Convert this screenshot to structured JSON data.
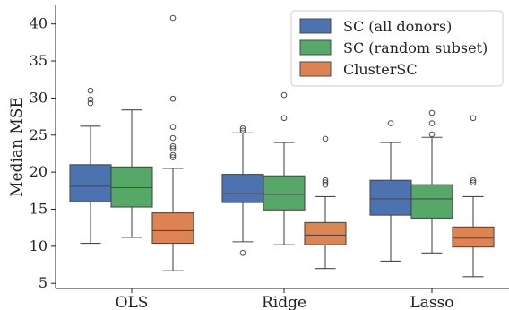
{
  "chart_data": {
    "type": "boxplot",
    "title": "",
    "xlabel": "",
    "ylabel": "Median MSE",
    "ylim": [
      4.3,
      42.5
    ],
    "yticks": [
      5,
      10,
      15,
      20,
      25,
      30,
      35,
      40
    ],
    "grid": false,
    "legend_position": "top-right",
    "categories": [
      "OLS",
      "Ridge",
      "Lasso"
    ],
    "series": [
      {
        "name": "SC (all donors)",
        "color": "#4c72b0",
        "boxes": [
          {
            "whislo": 10.4,
            "q1": 16.0,
            "med": 18.1,
            "q3": 21.0,
            "whishi": 26.2,
            "fliers": [
              29.3,
              29.8,
              31.0
            ]
          },
          {
            "whislo": 10.6,
            "q1": 15.9,
            "med": 17.1,
            "q3": 19.7,
            "whishi": 25.3,
            "fliers": [
              9.1,
              25.6,
              25.9
            ]
          },
          {
            "whislo": 8.0,
            "q1": 14.2,
            "med": 16.4,
            "q3": 18.9,
            "whishi": 24.0,
            "fliers": [
              26.6
            ]
          }
        ]
      },
      {
        "name": "SC (random subset)",
        "color": "#55a868",
        "boxes": [
          {
            "whislo": 11.2,
            "q1": 15.3,
            "med": 17.9,
            "q3": 20.7,
            "whishi": 28.4,
            "fliers": []
          },
          {
            "whislo": 10.2,
            "q1": 14.9,
            "med": 17.0,
            "q3": 19.5,
            "whishi": 24.0,
            "fliers": [
              27.3,
              30.4
            ]
          },
          {
            "whislo": 9.1,
            "q1": 13.8,
            "med": 16.4,
            "q3": 18.3,
            "whishi": 24.7,
            "fliers": [
              25.1,
              26.6,
              28.0
            ]
          }
        ]
      },
      {
        "name": "ClusterSC",
        "color": "#dd8452",
        "boxes": [
          {
            "whislo": 6.7,
            "q1": 10.4,
            "med": 12.1,
            "q3": 14.5,
            "whishi": 20.5,
            "fliers": [
              22.0,
              22.3,
              23.2,
              23.5,
              24.6,
              26.1,
              29.9,
              40.8
            ]
          },
          {
            "whislo": 7.0,
            "q1": 10.2,
            "med": 11.5,
            "q3": 13.2,
            "whishi": 16.7,
            "fliers": [
              18.3,
              18.6,
              18.9,
              24.5
            ]
          },
          {
            "whislo": 5.9,
            "q1": 9.9,
            "med": 11.1,
            "q3": 12.6,
            "whishi": 16.7,
            "fliers": [
              18.6,
              18.9,
              27.3
            ]
          }
        ]
      }
    ]
  }
}
